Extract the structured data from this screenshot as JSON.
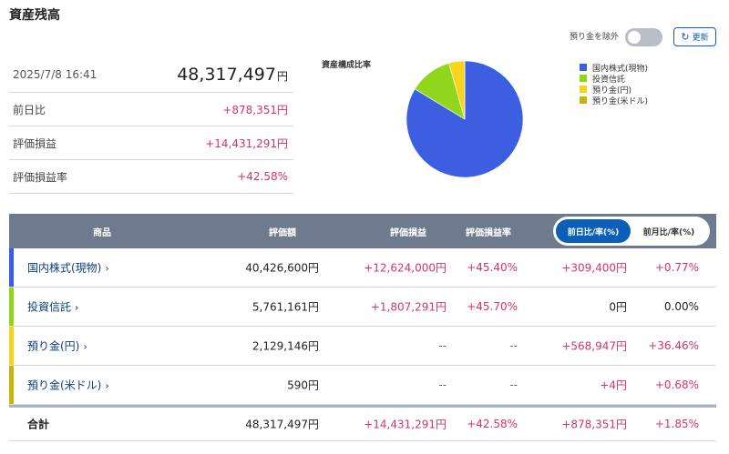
{
  "page_title": "資産残高",
  "summary": {
    "datetime": "2025/7/8 16:41",
    "total_value": "48,317,497",
    "total_unit": "円",
    "rows": [
      {
        "label": "前日比",
        "value": "+878,351円"
      },
      {
        "label": "評価損益",
        "value": "+14,431,291円"
      },
      {
        "label": "評価損益率",
        "value": "+42.58%"
      }
    ]
  },
  "controls": {
    "toggle_label": "預り金を除外",
    "refresh_label": "更新"
  },
  "chart_data": {
    "type": "pie",
    "title": "資産構成比率",
    "labels": [
      "国内株式(現物)",
      "投資信託",
      "預り金(円)",
      "預り金(米ドル)"
    ],
    "values": [
      40426600,
      5761161,
      2129146,
      590
    ],
    "colors": [
      "#3b5fe0",
      "#8fd61c",
      "#f7d51a",
      "#c7b50a"
    ],
    "legend_position": "right"
  },
  "table": {
    "headers": {
      "product": "商品",
      "amount": "評価額",
      "pl": "評価損益",
      "pl_rate": "評価損益率"
    },
    "segment": {
      "active": "前日比/率(%)",
      "inactive": "前月比/率(%)"
    },
    "rows": [
      {
        "name": "国内株式(現物)",
        "amount": "40,426,600円",
        "pl": "+12,624,000円",
        "pl_rate": "+45.40%",
        "day_diff": "+309,400円",
        "day_rate": "+0.77%",
        "color": "#3b5fe0"
      },
      {
        "name": "投資信託",
        "amount": "5,761,161円",
        "pl": "+1,807,291円",
        "pl_rate": "+45.70%",
        "day_diff": "0円",
        "day_rate": "0.00%",
        "color": "#8fd61c"
      },
      {
        "name": "預り金(円)",
        "amount": "2,129,146円",
        "pl": "--",
        "pl_rate": "--",
        "day_diff": "+568,947円",
        "day_rate": "+36.46%",
        "color": "#f7d51a"
      },
      {
        "name": "預り金(米ドル)",
        "amount": "590円",
        "pl": "--",
        "pl_rate": "--",
        "day_diff": "+4円",
        "day_rate": "+0.68%",
        "color": "#c7b50a"
      }
    ],
    "total": {
      "name": "合計",
      "amount": "48,317,497円",
      "pl": "+14,431,291円",
      "pl_rate": "+42.58%",
      "day_diff": "+878,351円",
      "day_rate": "+1.85%"
    }
  }
}
